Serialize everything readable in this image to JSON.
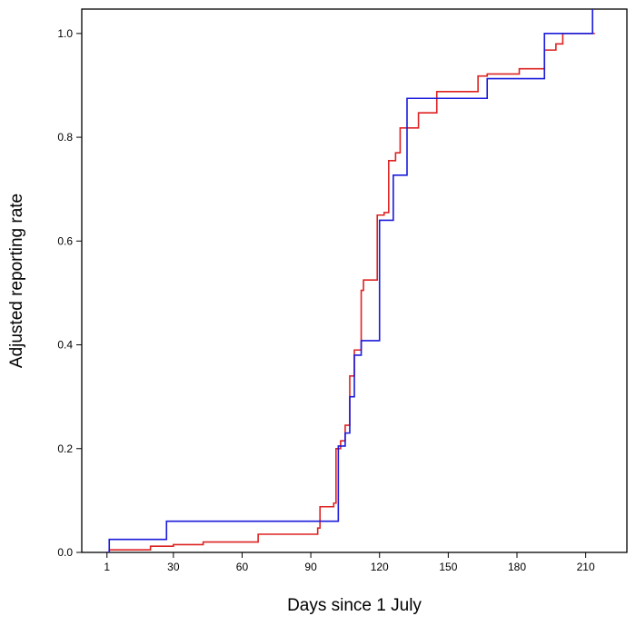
{
  "chart_data": {
    "type": "line",
    "step": true,
    "xlabel": "Days since 1 July",
    "ylabel": "Adjusted reporting rate",
    "xlim": [
      -10,
      228
    ],
    "ylim": [
      0,
      1.047
    ],
    "xticks": [
      1,
      30,
      60,
      90,
      120,
      150,
      180,
      210
    ],
    "yticks": [
      0.0,
      0.2,
      0.4,
      0.6,
      0.8,
      1.0
    ],
    "ytick_labels": [
      "0.0",
      "0.2",
      "0.4",
      "0.6",
      "0.8",
      "1.0"
    ],
    "grid": false,
    "series": [
      {
        "color": "#dd2222",
        "x": [
          1,
          2,
          20,
          30,
          43,
          67,
          93,
          94,
          100,
          101,
          103,
          105,
          107,
          109,
          112,
          113,
          119,
          122,
          124,
          127,
          129,
          137,
          145,
          163,
          167,
          181,
          192,
          197,
          200,
          214
        ],
        "y": [
          0,
          0.005,
          0.012,
          0.015,
          0.02,
          0.035,
          0.047,
          0.088,
          0.095,
          0.2,
          0.215,
          0.245,
          0.34,
          0.39,
          0.505,
          0.525,
          0.65,
          0.655,
          0.755,
          0.77,
          0.818,
          0.847,
          0.888,
          0.918,
          0.922,
          0.932,
          0.968,
          0.98,
          1.0,
          1.0
        ]
      },
      {
        "color": "#1a1adb",
        "x": [
          1,
          2,
          27,
          102,
          105,
          107,
          109,
          112,
          120,
          123,
          126,
          132,
          167,
          192,
          213,
          214
        ],
        "y": [
          0,
          0.025,
          0.06,
          0.205,
          0.23,
          0.3,
          0.38,
          0.408,
          0.64,
          0.64,
          0.727,
          0.875,
          0.913,
          1.0,
          1.06,
          1.06
        ]
      }
    ]
  }
}
